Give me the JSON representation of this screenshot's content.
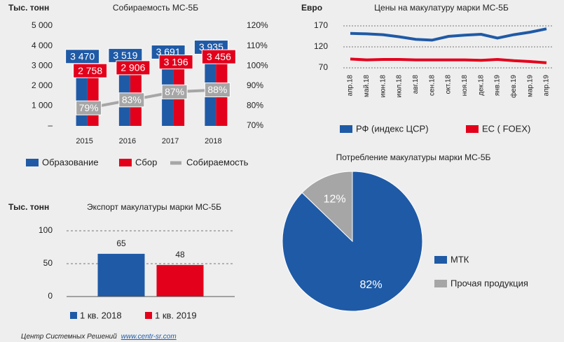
{
  "chart_data": [
    {
      "type": "bar",
      "title": "Собираемость МС-5Б",
      "ylabel": "Тыс. тонн",
      "categories": [
        "2015",
        "2016",
        "2017",
        "2018"
      ],
      "series": [
        {
          "name": "Образование",
          "color": "#1f5aa6",
          "values": [
            3470,
            3519,
            3691,
            3935
          ],
          "value_labels": [
            "3 470",
            "3 519",
            "3 691",
            "3 935"
          ]
        },
        {
          "name": "Сбор",
          "color": "#e3001b",
          "values": [
            2758,
            2906,
            3196,
            3456
          ],
          "value_labels": [
            "2 758",
            "2 906",
            "3 196",
            "3 456"
          ]
        },
        {
          "name": "Собираемость",
          "color": "#a6a6a6",
          "type": "line",
          "axis": "y2",
          "values": [
            79,
            83,
            87,
            88
          ],
          "value_labels": [
            "79%",
            "83%",
            "87%",
            "88%"
          ]
        }
      ],
      "ylim": [
        0,
        5000
      ],
      "yticks": [
        {
          "value": 0,
          "label": "–"
        },
        {
          "value": 1000,
          "label": "1 000"
        },
        {
          "value": 2000,
          "label": "2 000"
        },
        {
          "value": 3000,
          "label": "3 000"
        },
        {
          "value": 4000,
          "label": "4 000"
        },
        {
          "value": 5000,
          "label": "5 000"
        }
      ],
      "y2lim": [
        70,
        120
      ],
      "y2ticks": [
        {
          "value": 70,
          "label": "70%"
        },
        {
          "value": 80,
          "label": "80%"
        },
        {
          "value": 90,
          "label": "90%"
        },
        {
          "value": 100,
          "label": "100%"
        },
        {
          "value": 110,
          "label": "110%"
        },
        {
          "value": 120,
          "label": "120%"
        }
      ],
      "grid": false
    },
    {
      "type": "line",
      "title": "Цены на макулатуру марки МС-5Б",
      "ylabel": "Евро",
      "categories": [
        "апр.18",
        "май.18",
        "июн.18",
        "июл.18",
        "авг.18",
        "сен.18",
        "окт.18",
        "ноя.18",
        "дек.18",
        "янв.19",
        "фев.19",
        "мар.19",
        "апр.19"
      ],
      "series": [
        {
          "name": "РФ (индекс ЦСР)",
          "color": "#1f5aa6",
          "values": [
            152,
            151,
            149,
            144,
            138,
            136,
            145,
            148,
            150,
            141,
            149,
            155,
            163
          ]
        },
        {
          "name": "ЕС (  FOEX)",
          "color": "#e3001b",
          "values": [
            91,
            89,
            90,
            90,
            89,
            89,
            89,
            89,
            88,
            90,
            87,
            85,
            82
          ]
        }
      ],
      "ylim": [
        70,
        170
      ],
      "yticks": [
        70,
        120,
        170
      ],
      "grid": true
    },
    {
      "type": "bar",
      "title": "Экспорт макулатуры марки МС-5Б",
      "ylabel": "Тыс. тонн",
      "categories": [
        "1 кв. 2018",
        "1 кв. 2019"
      ],
      "values": [
        65,
        48
      ],
      "colors": [
        "#1f5aa6",
        "#e3001b"
      ],
      "ylim": [
        0,
        100
      ],
      "yticks": [
        0,
        50,
        100
      ],
      "grid": true
    },
    {
      "type": "pie",
      "title": "Потребление макулатуры марки МС-5Б",
      "categories": [
        "МТК",
        "Прочая продукция"
      ],
      "values": [
        82,
        12
      ],
      "value_labels": [
        "82%",
        "12%"
      ],
      "colors": [
        "#1f5aa6",
        "#a6a6a6"
      ]
    }
  ],
  "footer": {
    "text": "Центр Системных Решений",
    "link": "www.centr-sr.com"
  }
}
